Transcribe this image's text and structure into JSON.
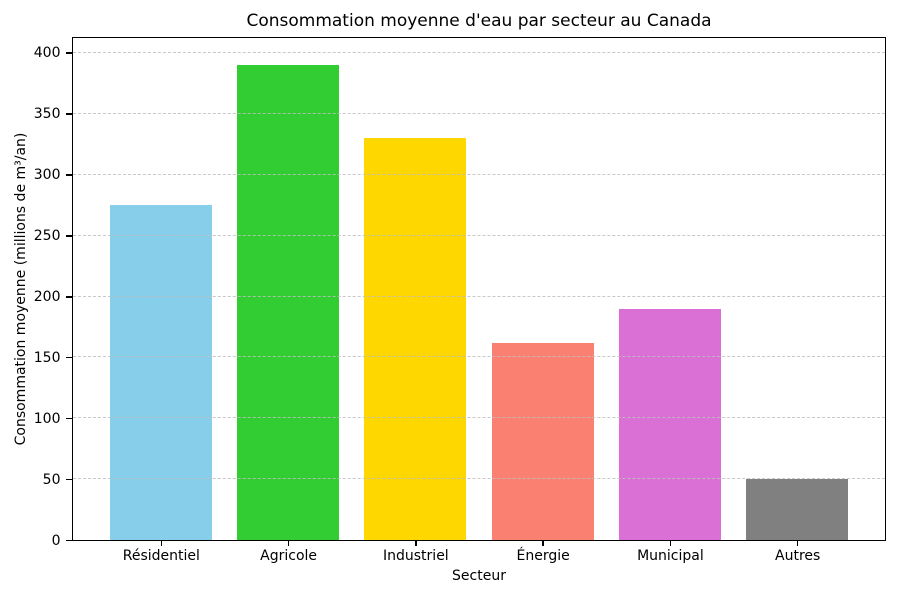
{
  "chart_data": {
    "type": "bar",
    "title": "Consommation moyenne d'eau par secteur au Canada",
    "xlabel": "Secteur",
    "ylabel": "Consommation moyenne (millions de m³/an)",
    "categories": [
      "Résidentiel",
      "Agricole",
      "Industriel",
      "Énergie",
      "Municipal",
      "Autres"
    ],
    "values": [
      275,
      390,
      330,
      162,
      190,
      50
    ],
    "bar_colors": [
      "#87CEEB",
      "#32CD32",
      "#FFD700",
      "#FA8072",
      "#DA70D6",
      "#808080"
    ],
    "yticks": [
      0,
      50,
      100,
      150,
      200,
      250,
      300,
      350,
      400
    ],
    "ylim": [
      0,
      412
    ],
    "grid": "horizontal-dashed",
    "grid_color": "#bebebe",
    "legend": "none",
    "background": "#ffffff",
    "bar_width_fraction": 0.8
  }
}
